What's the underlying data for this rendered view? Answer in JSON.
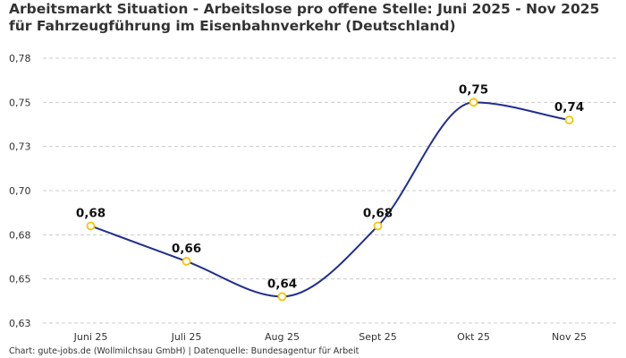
{
  "chart_data": {
    "type": "line",
    "title": "Arbeitsmarkt Situation - Arbeitslose pro offene Stelle: Juni 2025 - Nov 2025 für Fahrzeugführung im Eisenbahnverkehr (Deutschland)",
    "categories": [
      "Juni 25",
      "Juli 25",
      "Aug 25",
      "Sept 25",
      "Okt 25",
      "Nov 25"
    ],
    "values": [
      0.68,
      0.66,
      0.64,
      0.68,
      0.75,
      0.74
    ],
    "data_labels": [
      "0,68",
      "0,66",
      "0,64",
      "0,68",
      "0,75",
      "0,74"
    ],
    "ylim": [
      0.625,
      0.775
    ],
    "yticks": [
      0.625,
      0.65,
      0.675,
      0.7,
      0.725,
      0.75,
      0.775
    ],
    "ytick_labels": [
      "0,63",
      "0,65",
      "0,68",
      "0,70",
      "0,73",
      "0,75",
      "0,78"
    ],
    "xlabel": "",
    "ylabel": "",
    "grid": true,
    "smooth": true,
    "colors": {
      "line": "#1f2e8f",
      "marker_stroke": "#f5c400",
      "marker_fill": "#ffffff",
      "grid": "#cccccc"
    }
  },
  "footer": "Chart: gute-jobs.de (Wollmilchsau GmbH) | Datenquelle: Bundesagentur für Arbeit"
}
